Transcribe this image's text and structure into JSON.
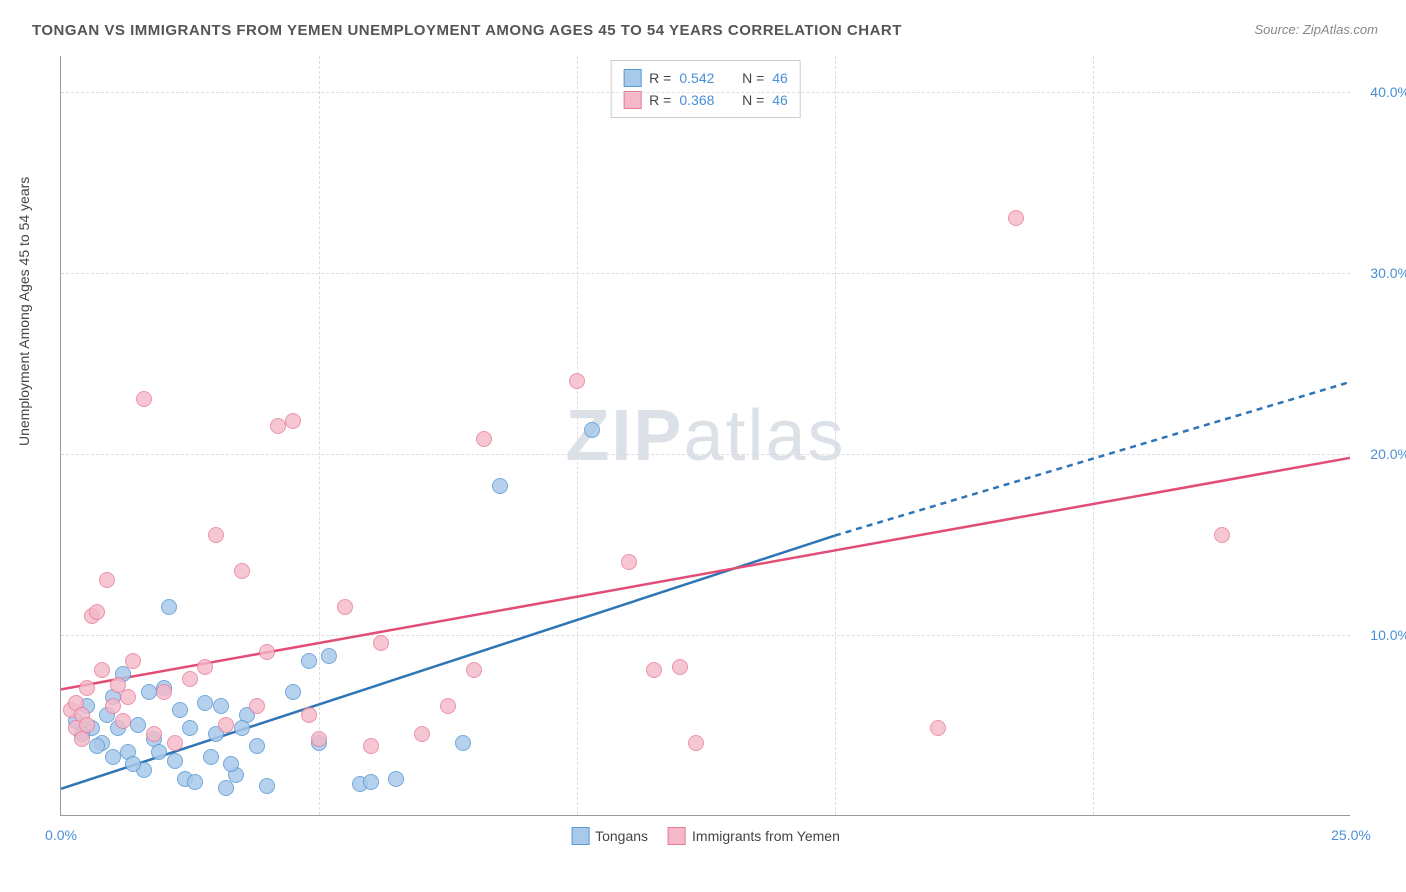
{
  "title": "TONGAN VS IMMIGRANTS FROM YEMEN UNEMPLOYMENT AMONG AGES 45 TO 54 YEARS CORRELATION CHART",
  "source_label": "Source: ",
  "source_link": "ZipAtlas.com",
  "yaxis_label": "Unemployment Among Ages 45 to 54 years",
  "watermark_a": "ZIP",
  "watermark_b": "atlas",
  "chart": {
    "type": "scatter",
    "xlim": [
      0,
      25
    ],
    "ylim": [
      0,
      42
    ],
    "xticks": [
      0,
      5,
      10,
      15,
      20,
      25
    ],
    "xtick_labels": [
      "0.0%",
      "",
      "",
      "",
      "",
      "25.0%"
    ],
    "yticks": [
      10,
      20,
      30,
      40
    ],
    "ytick_labels": [
      "10.0%",
      "20.0%",
      "30.0%",
      "40.0%"
    ],
    "grid_color": "#dddddd",
    "point_radius": 8,
    "series": [
      {
        "name": "Tongans",
        "fill": "#a9c9eb",
        "stroke": "#5b9bd5",
        "fill_opacity": 0.55,
        "r_label": "R = ",
        "r_value": "0.542",
        "n_label": "N = ",
        "n_value": "46",
        "trend": {
          "x1": 0,
          "y1": 1.5,
          "x2": 15,
          "y2": 15.5,
          "dash_x2": 25,
          "dash_y2": 24,
          "color": "#2e75b6",
          "width": 2.5
        },
        "points": [
          [
            0.3,
            5.2
          ],
          [
            0.5,
            6.0
          ],
          [
            0.6,
            4.8
          ],
          [
            0.8,
            4.0
          ],
          [
            1.0,
            6.5
          ],
          [
            1.2,
            7.8
          ],
          [
            1.3,
            3.5
          ],
          [
            1.5,
            5.0
          ],
          [
            1.6,
            2.5
          ],
          [
            1.8,
            4.2
          ],
          [
            2.0,
            7.0
          ],
          [
            2.1,
            11.5
          ],
          [
            2.2,
            3.0
          ],
          [
            2.4,
            2.0
          ],
          [
            2.6,
            1.8
          ],
          [
            2.8,
            6.2
          ],
          [
            3.0,
            4.5
          ],
          [
            3.2,
            1.5
          ],
          [
            3.4,
            2.2
          ],
          [
            3.6,
            5.5
          ],
          [
            3.8,
            3.8
          ],
          [
            4.0,
            1.6
          ],
          [
            4.5,
            6.8
          ],
          [
            4.8,
            8.5
          ],
          [
            5.0,
            4.0
          ],
          [
            5.2,
            8.8
          ],
          [
            5.8,
            1.7
          ],
          [
            6.0,
            1.8
          ],
          [
            6.5,
            2.0
          ],
          [
            7.8,
            4.0
          ],
          [
            8.5,
            18.2
          ],
          [
            10.3,
            21.3
          ],
          [
            1.0,
            3.2
          ],
          [
            1.4,
            2.8
          ],
          [
            0.9,
            5.5
          ],
          [
            1.7,
            6.8
          ],
          [
            2.3,
            5.8
          ],
          [
            2.9,
            3.2
          ],
          [
            3.1,
            6.0
          ],
          [
            3.5,
            4.8
          ],
          [
            0.4,
            4.5
          ],
          [
            0.7,
            3.8
          ],
          [
            1.1,
            4.8
          ],
          [
            1.9,
            3.5
          ],
          [
            2.5,
            4.8
          ],
          [
            3.3,
            2.8
          ]
        ]
      },
      {
        "name": "Immigrants from Yemen",
        "fill": "#f5b8c8",
        "stroke": "#e77a9b",
        "fill_opacity": 0.5,
        "r_label": "R = ",
        "r_value": "0.368",
        "n_label": "N = ",
        "n_value": "46",
        "trend": {
          "x1": 0,
          "y1": 7.0,
          "x2": 25,
          "y2": 19.8,
          "dash_x2": 25,
          "dash_y2": 19.8,
          "color": "#e14d77",
          "width": 2.5
        },
        "points": [
          [
            0.2,
            5.8
          ],
          [
            0.3,
            6.2
          ],
          [
            0.4,
            5.5
          ],
          [
            0.5,
            7.0
          ],
          [
            0.6,
            11.0
          ],
          [
            0.7,
            11.2
          ],
          [
            0.8,
            8.0
          ],
          [
            0.9,
            13.0
          ],
          [
            1.0,
            6.0
          ],
          [
            1.2,
            5.2
          ],
          [
            1.4,
            8.5
          ],
          [
            1.6,
            23.0
          ],
          [
            1.8,
            4.5
          ],
          [
            2.0,
            6.8
          ],
          [
            2.2,
            4.0
          ],
          [
            2.5,
            7.5
          ],
          [
            3.0,
            15.5
          ],
          [
            3.2,
            5.0
          ],
          [
            3.5,
            13.5
          ],
          [
            4.0,
            9.0
          ],
          [
            4.2,
            21.5
          ],
          [
            4.5,
            21.8
          ],
          [
            5.0,
            4.2
          ],
          [
            5.5,
            11.5
          ],
          [
            6.0,
            3.8
          ],
          [
            6.2,
            9.5
          ],
          [
            7.0,
            4.5
          ],
          [
            7.5,
            6.0
          ],
          [
            8.0,
            8.0
          ],
          [
            8.2,
            20.8
          ],
          [
            10.0,
            24.0
          ],
          [
            11.0,
            14.0
          ],
          [
            11.5,
            8.0
          ],
          [
            12.0,
            8.2
          ],
          [
            12.3,
            4.0
          ],
          [
            17.0,
            4.8
          ],
          [
            18.5,
            33.0
          ],
          [
            22.5,
            15.5
          ],
          [
            0.3,
            4.8
          ],
          [
            0.5,
            5.0
          ],
          [
            1.1,
            7.2
          ],
          [
            1.3,
            6.5
          ],
          [
            2.8,
            8.2
          ],
          [
            3.8,
            6.0
          ],
          [
            4.8,
            5.5
          ],
          [
            0.4,
            4.2
          ]
        ]
      }
    ]
  }
}
